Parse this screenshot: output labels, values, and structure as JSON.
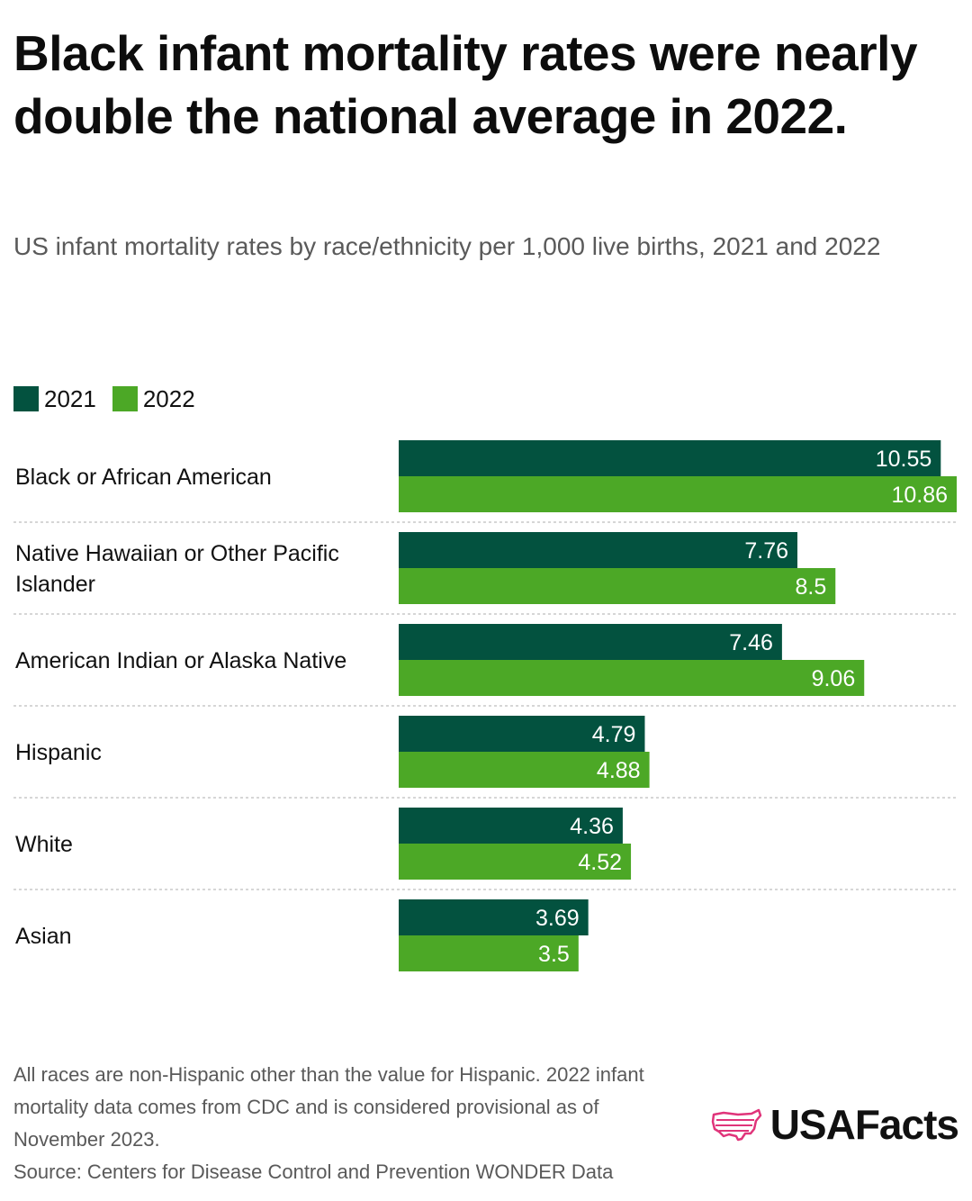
{
  "title": "Black infant mortality rates were nearly double the national average in 2022.",
  "subtitle": "US infant mortality rates by race/ethnicity per 1,000 live births, 2021 and 2022",
  "footnote": "All races are non-Hispanic other than the value for Hispanic. 2022 infant mortality data comes from CDC and is considered provisional as of November 2023.",
  "source": "Source: Centers for Disease Control and Prevention WONDER Data",
  "logo_text": "USAFacts",
  "colors": {
    "s2021": "#03523f",
    "s2022": "#4ca826",
    "accent": "#e0347a"
  },
  "chart_data": {
    "type": "bar",
    "orientation": "horizontal",
    "title": "Black infant mortality rates were nearly double the national average in 2022.",
    "subtitle": "US infant mortality rates by race/ethnicity per 1,000 live births, 2021 and 2022",
    "xlabel": "",
    "ylabel": "",
    "xlim": [
      0,
      10.86
    ],
    "legend_position": "top-left",
    "categories": [
      "Black or African American",
      "Native Hawaiian or Other Pacific Islander",
      "American Indian or Alaska Native",
      "Hispanic",
      "White",
      "Asian"
    ],
    "series": [
      {
        "name": "2021",
        "values": [
          10.55,
          7.76,
          7.46,
          4.79,
          4.36,
          3.69
        ],
        "labels": [
          "10.55",
          "7.76",
          "7.46",
          "4.79",
          "4.36",
          "3.69"
        ]
      },
      {
        "name": "2022",
        "values": [
          10.86,
          8.5,
          9.06,
          4.88,
          4.52,
          3.5
        ],
        "labels": [
          "10.86",
          "8.5",
          "9.06",
          "4.88",
          "4.52",
          "3.5"
        ]
      }
    ]
  }
}
